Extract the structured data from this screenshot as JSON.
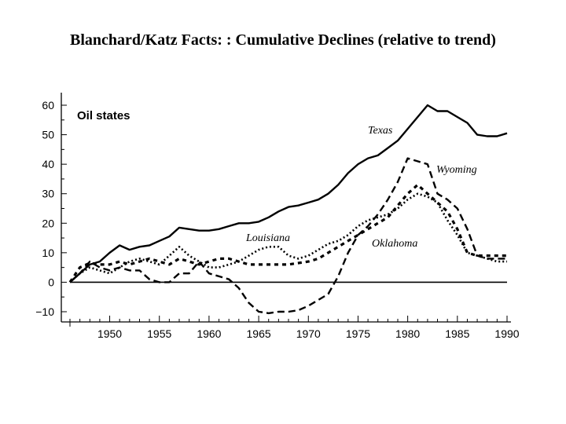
{
  "slide": {
    "title": "Blanchard/Katz Facts: : Cumulative Declines (relative to trend)"
  },
  "chart_data": {
    "type": "line",
    "title": "",
    "panel_label": "Oil states",
    "xlabel": "",
    "ylabel": "",
    "xlim": [
      1946,
      1990
    ],
    "ylim": [
      -12,
      62
    ],
    "x_ticks": [
      1950,
      1955,
      1960,
      1965,
      1970,
      1975,
      1980,
      1985,
      1990
    ],
    "y_ticks": [
      -10,
      0,
      10,
      20,
      30,
      40,
      50,
      60
    ],
    "grid": false,
    "legend": "inline labels",
    "series": [
      {
        "name": "Texas",
        "style": "solid",
        "x": [
          1946,
          1947,
          1948,
          1949,
          1950,
          1951,
          1952,
          1953,
          1954,
          1955,
          1956,
          1957,
          1958,
          1959,
          1960,
          1961,
          1962,
          1963,
          1964,
          1965,
          1966,
          1967,
          1968,
          1969,
          1970,
          1971,
          1972,
          1973,
          1974,
          1975,
          1976,
          1977,
          1978,
          1979,
          1980,
          1981,
          1982,
          1983,
          1984,
          1985,
          1986,
          1987,
          1988,
          1989,
          1990
        ],
        "values": [
          0,
          3,
          6,
          7,
          10,
          12.5,
          11,
          12,
          12.5,
          14,
          15.5,
          18.5,
          18,
          17.5,
          17.5,
          18,
          19,
          20,
          20,
          20.5,
          22,
          24,
          25.5,
          26,
          27,
          28,
          30,
          33,
          37,
          40,
          42,
          43,
          45.5,
          48,
          52,
          56,
          60,
          58,
          58,
          56,
          54,
          50,
          49.5,
          49.5,
          50.5
        ]
      },
      {
        "name": "Wyoming",
        "style": "dashed",
        "x": [
          1946,
          1947,
          1948,
          1949,
          1950,
          1951,
          1952,
          1953,
          1954,
          1955,
          1956,
          1957,
          1958,
          1959,
          1960,
          1961,
          1962,
          1963,
          1964,
          1965,
          1966,
          1967,
          1968,
          1969,
          1970,
          1971,
          1972,
          1973,
          1974,
          1975,
          1976,
          1977,
          1978,
          1979,
          1980,
          1981,
          1982,
          1983,
          1984,
          1985,
          1986,
          1987,
          1988,
          1989,
          1990
        ],
        "values": [
          0,
          3,
          7,
          5,
          4,
          5,
          4,
          4,
          1,
          0,
          0,
          3,
          3,
          7,
          3,
          2,
          1,
          -2,
          -7,
          -10,
          -10.5,
          -10,
          -10,
          -9.5,
          -8,
          -6,
          -4,
          2,
          10,
          16,
          19,
          23,
          28,
          34,
          42,
          41,
          40,
          30,
          28,
          25,
          18,
          9,
          8,
          8,
          8
        ]
      },
      {
        "name": "Oklahoma",
        "style": "dotted",
        "x": [
          1946,
          1947,
          1948,
          1949,
          1950,
          1951,
          1952,
          1953,
          1954,
          1955,
          1956,
          1957,
          1958,
          1959,
          1960,
          1961,
          1962,
          1963,
          1964,
          1965,
          1966,
          1967,
          1968,
          1969,
          1970,
          1971,
          1972,
          1973,
          1974,
          1975,
          1976,
          1977,
          1978,
          1979,
          1980,
          1981,
          1982,
          1983,
          1984,
          1985,
          1986,
          1987,
          1988,
          1989,
          1990
        ],
        "values": [
          0,
          3,
          5,
          4,
          3,
          5,
          7,
          8,
          7,
          6,
          9,
          12,
          9,
          7,
          5,
          5,
          6,
          7,
          9,
          11,
          12,
          12,
          9,
          8,
          9,
          11,
          13,
          14,
          16,
          19,
          21,
          22,
          23,
          25,
          28,
          30,
          29,
          27,
          21,
          16,
          10,
          9,
          8,
          7,
          7
        ]
      },
      {
        "name": "Louisiana",
        "style": "dash-dot",
        "x": [
          1946,
          1947,
          1948,
          1949,
          1950,
          1951,
          1952,
          1953,
          1954,
          1955,
          1956,
          1957,
          1958,
          1959,
          1960,
          1961,
          1962,
          1963,
          1964,
          1965,
          1966,
          1967,
          1968,
          1969,
          1970,
          1971,
          1972,
          1973,
          1974,
          1975,
          1976,
          1977,
          1978,
          1979,
          1980,
          1981,
          1982,
          1983,
          1984,
          1985,
          1986,
          1987,
          1988,
          1989,
          1990
        ],
        "values": [
          0,
          5,
          6.5,
          6,
          6,
          7,
          6,
          7,
          8,
          7,
          6,
          8,
          7,
          6,
          7,
          8,
          8,
          7,
          6,
          6,
          6,
          6,
          6,
          6.5,
          7,
          8,
          10,
          12,
          14,
          16,
          18,
          20,
          22,
          26,
          30,
          33,
          30,
          27,
          24,
          18,
          10,
          9,
          9,
          9,
          9
        ]
      }
    ]
  }
}
